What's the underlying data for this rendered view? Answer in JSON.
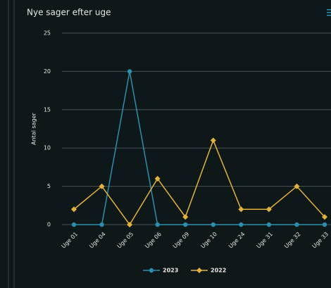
{
  "chart_data": {
    "type": "line",
    "title": "Nye sager efter uge",
    "ylabel": "Antal sager",
    "categories": [
      "Uge 01",
      "Uge 04",
      "Uge 05",
      "Uge 06",
      "Uge 09",
      "Uge 10",
      "Uge 24",
      "Uge 31",
      "Uge 32",
      "Uge 33"
    ],
    "series": [
      {
        "name": "2023",
        "color": "#2a8fae",
        "values": [
          0,
          0,
          20,
          0,
          0,
          0,
          0,
          0,
          0,
          0
        ]
      },
      {
        "name": "2022",
        "color": "#e3b23c",
        "values": [
          2,
          5,
          0,
          6,
          1,
          11,
          2,
          2,
          5,
          1
        ]
      }
    ],
    "ylim": [
      0,
      25
    ],
    "yticks": [
      0,
      5,
      10,
      15,
      20,
      25
    ],
    "grid": true
  }
}
